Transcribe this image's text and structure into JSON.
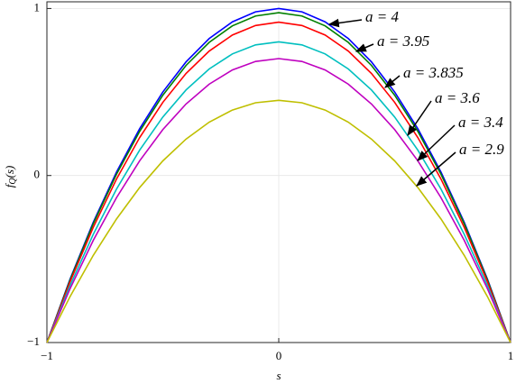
{
  "chart_data": {
    "type": "line",
    "xlabel": "s",
    "ylabel": {
      "base": "f",
      "sub": "Q",
      "rest": "(s)"
    },
    "x": [
      -1,
      -0.9,
      -0.8,
      -0.7,
      -0.6,
      -0.5,
      -0.4,
      -0.3,
      -0.2,
      -0.1,
      0,
      0.1,
      0.2,
      0.3,
      0.4,
      0.5,
      0.6,
      0.7,
      0.8,
      0.9,
      1
    ],
    "series": [
      {
        "name": "a = 4",
        "color": "#0000ff",
        "values": [
          -1,
          -0.62,
          -0.28,
          0.02,
          0.28,
          0.5,
          0.68,
          0.82,
          0.92,
          0.98,
          1,
          0.98,
          0.92,
          0.82,
          0.68,
          0.5,
          0.28,
          0.02,
          -0.28,
          -0.62,
          -1
        ]
      },
      {
        "name": "a = 3.95",
        "color": "#007f00",
        "values": [
          -1,
          -0.625,
          -0.289,
          0.007,
          0.264,
          0.481,
          0.659,
          0.797,
          0.896,
          0.955,
          0.975,
          0.955,
          0.896,
          0.797,
          0.659,
          0.481,
          0.264,
          0.007,
          -0.289,
          -0.625,
          -1
        ]
      },
      {
        "name": "a = 3.835",
        "color": "#ff0000",
        "values": [
          -1,
          -0.636,
          -0.31,
          -0.022,
          0.227,
          0.438,
          0.611,
          0.745,
          0.841,
          0.898,
          0.918,
          0.898,
          0.841,
          0.745,
          0.611,
          0.438,
          0.227,
          -0.022,
          -0.31,
          -0.636,
          -1
        ]
      },
      {
        "name": "a = 3.6",
        "color": "#00bfbf",
        "values": [
          -1,
          -0.658,
          -0.352,
          -0.082,
          0.152,
          0.35,
          0.512,
          0.638,
          0.728,
          0.782,
          0.8,
          0.782,
          0.728,
          0.638,
          0.512,
          0.35,
          0.152,
          -0.082,
          -0.352,
          -0.658,
          -1
        ]
      },
      {
        "name": "a = 3.4",
        "color": "#bf00bf",
        "values": [
          -1,
          -0.677,
          -0.388,
          -0.133,
          0.088,
          0.275,
          0.428,
          0.547,
          0.632,
          0.683,
          0.7,
          0.683,
          0.632,
          0.547,
          0.428,
          0.275,
          0.088,
          -0.133,
          -0.388,
          -0.677,
          -1
        ]
      },
      {
        "name": "a = 2.9",
        "color": "#bfbf00",
        "values": [
          -1,
          -0.7245,
          -0.478,
          -0.2605,
          -0.072,
          0.0875,
          0.218,
          0.3195,
          0.392,
          0.4355,
          0.45,
          0.4355,
          0.392,
          0.3195,
          0.218,
          0.0875,
          -0.072,
          -0.2605,
          -0.478,
          -0.7245,
          -1
        ]
      }
    ],
    "xlim": [
      -1,
      1
    ],
    "ylim": [
      -1,
      1.04
    ],
    "xticks": [
      {
        "value": -1,
        "label": "−1"
      },
      0,
      1
    ],
    "yticks": [
      {
        "value": -1,
        "label": "−1"
      },
      0,
      1
    ],
    "grid": true
  }
}
